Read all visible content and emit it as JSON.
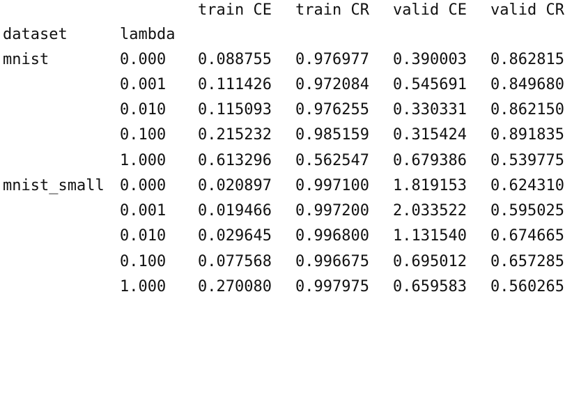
{
  "table": {
    "column_headers": [
      "train CE",
      "train CR",
      "valid CE",
      "valid CR"
    ],
    "index_headers": [
      "dataset",
      "lambda"
    ],
    "rows": [
      {
        "dataset": "mnist",
        "lambda": "0.000",
        "values": [
          "0.088755",
          "0.976977",
          "0.390003",
          "0.862815"
        ]
      },
      {
        "dataset": "",
        "lambda": "0.001",
        "values": [
          "0.111426",
          "0.972084",
          "0.545691",
          "0.849680"
        ]
      },
      {
        "dataset": "",
        "lambda": "0.010",
        "values": [
          "0.115093",
          "0.976255",
          "0.330331",
          "0.862150"
        ]
      },
      {
        "dataset": "",
        "lambda": "0.100",
        "values": [
          "0.215232",
          "0.985159",
          "0.315424",
          "0.891835"
        ]
      },
      {
        "dataset": "",
        "lambda": "1.000",
        "values": [
          "0.613296",
          "0.562547",
          "0.679386",
          "0.539775"
        ]
      },
      {
        "dataset": "mnist_small",
        "lambda": "0.000",
        "values": [
          "0.020897",
          "0.997100",
          "1.819153",
          "0.624310"
        ]
      },
      {
        "dataset": "",
        "lambda": "0.001",
        "values": [
          "0.019466",
          "0.997200",
          "2.033522",
          "0.595025"
        ]
      },
      {
        "dataset": "",
        "lambda": "0.010",
        "values": [
          "0.029645",
          "0.996800",
          "1.131540",
          "0.674665"
        ]
      },
      {
        "dataset": "",
        "lambda": "0.100",
        "values": [
          "0.077568",
          "0.996675",
          "0.695012",
          "0.657285"
        ]
      },
      {
        "dataset": "",
        "lambda": "1.000",
        "values": [
          "0.270080",
          "0.997975",
          "0.659583",
          "0.560265"
        ]
      }
    ]
  }
}
